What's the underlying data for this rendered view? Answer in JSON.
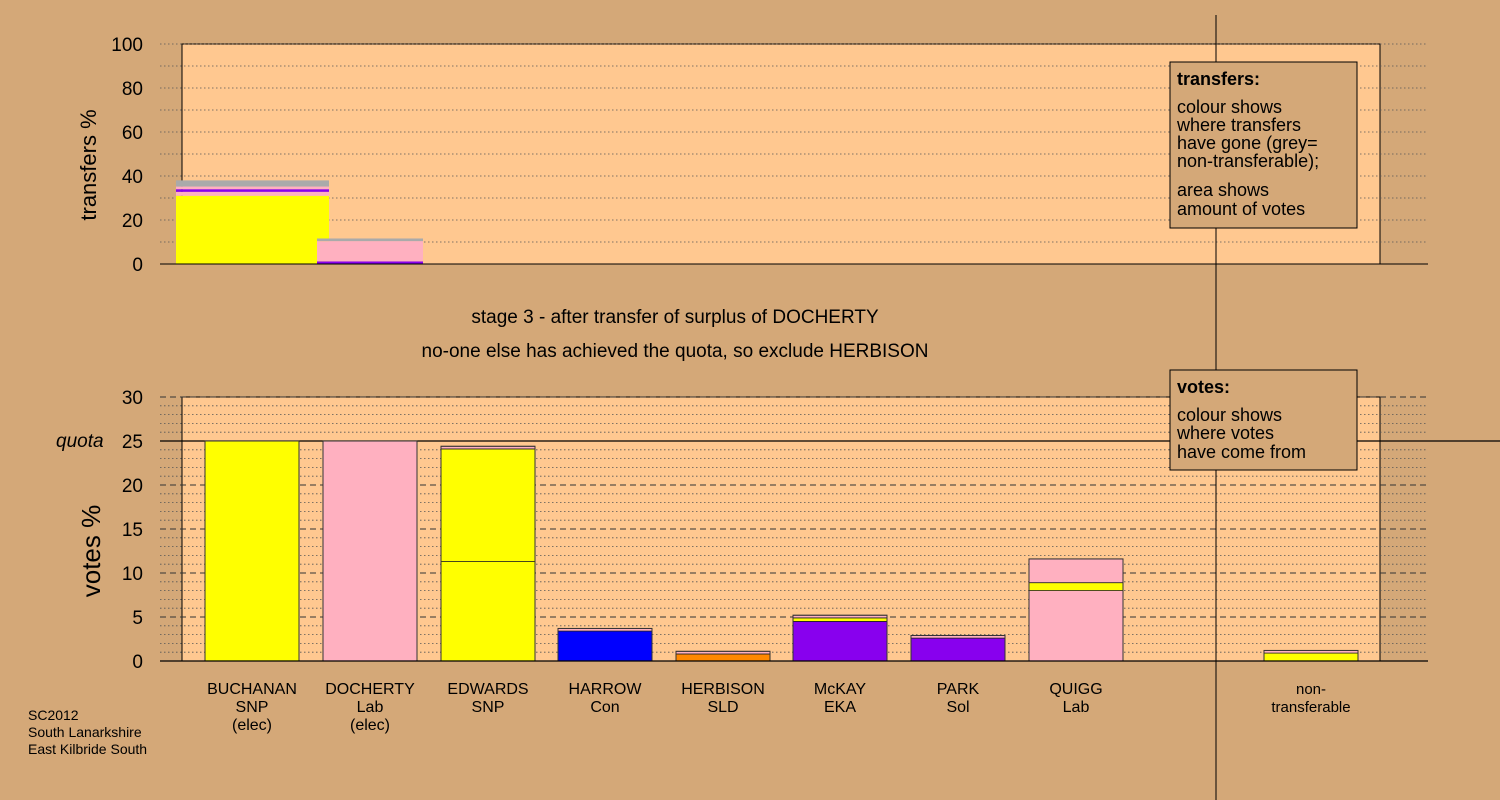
{
  "chart_data": [
    {
      "type": "bar",
      "stacked": true,
      "ylabel": "transfers %",
      "ylim": [
        0,
        100
      ],
      "yticks": [
        0,
        20,
        40,
        60,
        80,
        100
      ],
      "bars": [
        {
          "segments": [
            {
              "value": 31,
              "color": "#ffff00"
            },
            {
              "value": 1.8,
              "color": "#ffb0c0"
            },
            {
              "value": 1.2,
              "color": "#8800ee"
            },
            {
              "value": 1.2,
              "color": "#ffb0c0"
            },
            {
              "value": 2.8,
              "color": "#aaaaaa"
            }
          ]
        },
        {
          "segments": [
            {
              "value": 1.2,
              "color": "#8800ee"
            },
            {
              "value": 9.2,
              "color": "#ffb0c0"
            },
            {
              "value": 1.2,
              "color": "#aaaaaa"
            }
          ]
        }
      ],
      "legend": {
        "title": "transfers:",
        "lines": [
          "colour shows",
          "where transfers",
          "have gone (grey=",
          "non-transferable);"
        ],
        "lines2": [
          "area shows",
          "amount of votes"
        ]
      }
    },
    {
      "type": "bar",
      "stacked": true,
      "ylabel": "votes %",
      "ylim": [
        0,
        30
      ],
      "yticks": [
        0,
        5,
        10,
        15,
        20,
        25,
        30
      ],
      "quota": {
        "value": 25,
        "label": "quota"
      },
      "categories": [
        {
          "lines": [
            "BUCHANAN",
            "SNP",
            "(elec)"
          ]
        },
        {
          "lines": [
            "DOCHERTY",
            "Lab",
            "(elec)"
          ]
        },
        {
          "lines": [
            "EDWARDS",
            "SNP"
          ]
        },
        {
          "lines": [
            "HARROW",
            "Con"
          ]
        },
        {
          "lines": [
            "HERBISON",
            "SLD"
          ]
        },
        {
          "lines": [
            "McKAY",
            "EKA"
          ]
        },
        {
          "lines": [
            "PARK",
            "Sol"
          ]
        },
        {
          "lines": [
            "QUIGG",
            "Lab"
          ]
        },
        {
          "lines": [
            "non-",
            "transferable"
          ]
        }
      ],
      "bars": [
        {
          "segments": [
            {
              "value": 25.0,
              "color": "#ffff00"
            }
          ]
        },
        {
          "segments": [
            {
              "value": 25.0,
              "color": "#ffb0c0"
            }
          ]
        },
        {
          "segments": [
            {
              "value": 11.3,
              "color": "#ffff00"
            },
            {
              "value": 12.8,
              "color": "#ffff00"
            },
            {
              "value": 0.3,
              "color": "#ffb0c0"
            }
          ]
        },
        {
          "segments": [
            {
              "value": 3.4,
              "color": "#0000ff"
            },
            {
              "value": 0.3,
              "color": "#ffb0c0"
            }
          ]
        },
        {
          "segments": [
            {
              "value": 0.8,
              "color": "#ff8800"
            },
            {
              "value": 0.3,
              "color": "#ffb0c0"
            }
          ]
        },
        {
          "segments": [
            {
              "value": 4.5,
              "color": "#8800ee"
            },
            {
              "value": 0.4,
              "color": "#ffff00"
            },
            {
              "value": 0.3,
              "color": "#ffb0c0"
            }
          ]
        },
        {
          "segments": [
            {
              "value": 2.6,
              "color": "#8800ee"
            },
            {
              "value": 0.3,
              "color": "#ffb0c0"
            }
          ]
        },
        {
          "segments": [
            {
              "value": 8.0,
              "color": "#ffb0c0"
            },
            {
              "value": 0.9,
              "color": "#ffff00"
            },
            {
              "value": 2.7,
              "color": "#ffb0c0"
            }
          ]
        },
        {
          "segments": [
            {
              "value": 0.9,
              "color": "#ffff00"
            },
            {
              "value": 0.3,
              "color": "#ffb0c0"
            }
          ]
        }
      ],
      "legend": {
        "title": "votes:",
        "lines": [
          "colour shows",
          "where votes",
          "have come from"
        ]
      }
    }
  ],
  "captions": {
    "stage": "stage 3 - after transfer of surplus of DOCHERTY",
    "note": "no-one else has achieved the quota, so exclude HERBISON"
  },
  "footer": [
    "SC2012",
    "South Lanarkshire",
    "East Kilbride South"
  ],
  "colors": {
    "background": "#d4a878",
    "plot_background": "#ffc890"
  }
}
